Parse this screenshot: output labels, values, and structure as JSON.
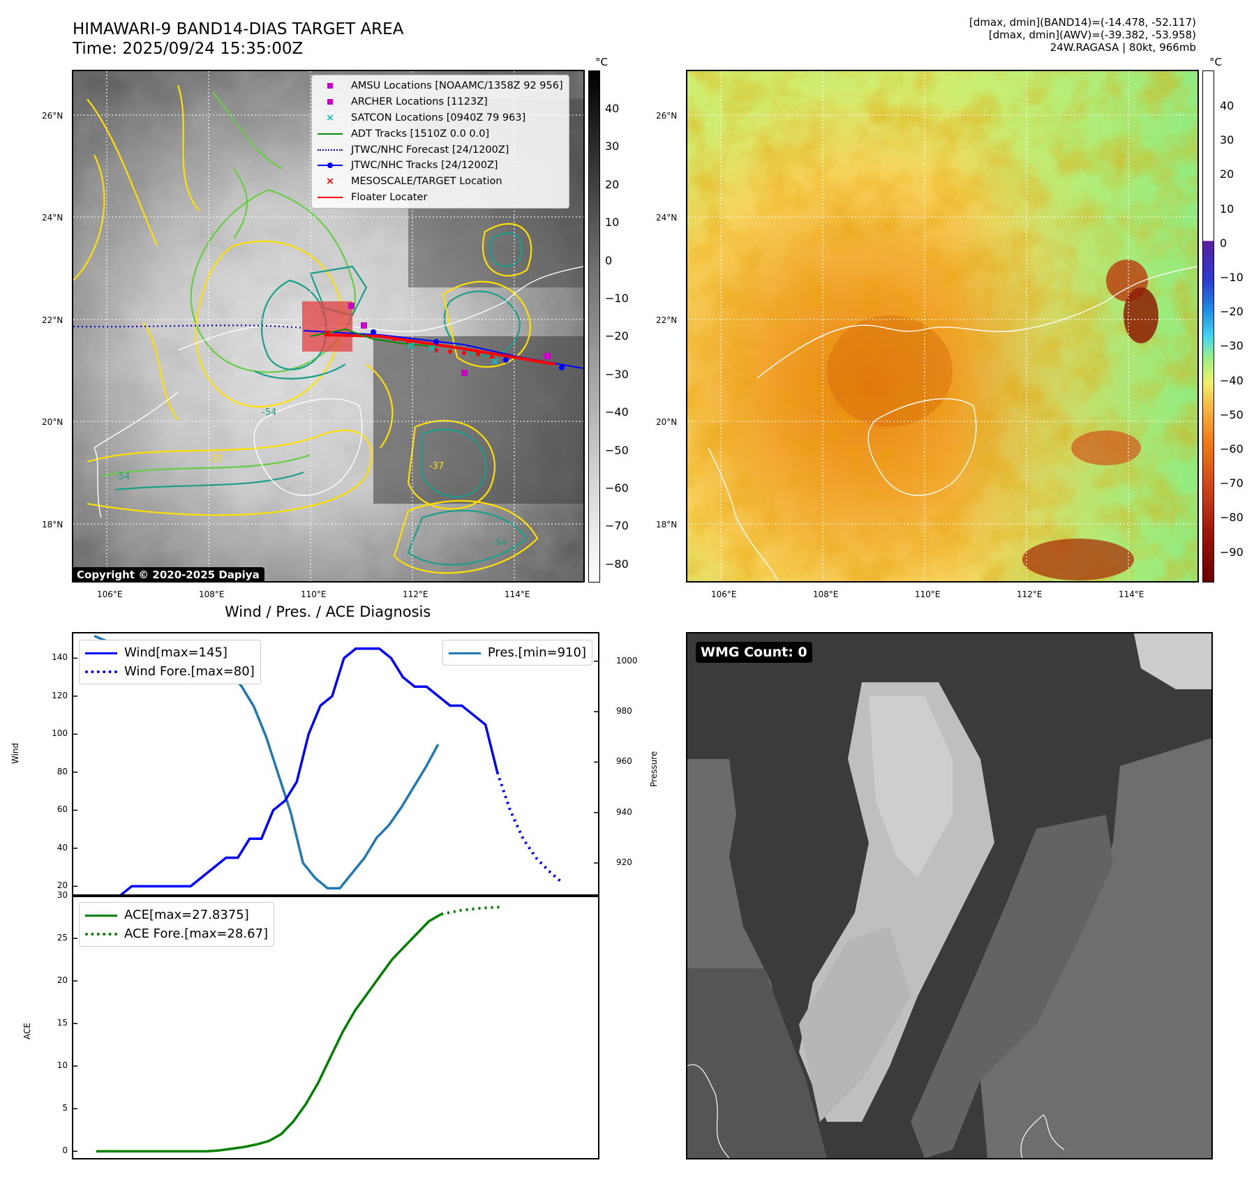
{
  "header": {
    "title_line1": "HIMAWARI-9 BAND14-DIAS TARGET AREA",
    "title_line2": "Time: 2025/09/24 15:35:00Z",
    "info_line1": "[dmax, dmin](BAND14)=(-14.478, -52.117)",
    "info_line2": "[dmax, dmin](AWV)=(-39.382, -53.958)",
    "info_line3": "24W.RAGASA | 80kt, 966mb"
  },
  "map": {
    "lat_labels": [
      "26°N",
      "24°N",
      "22°N",
      "20°N",
      "18°N"
    ],
    "lon_labels": [
      "106°E",
      "108°E",
      "110°E",
      "112°E",
      "114°E"
    ],
    "contour_labels": [
      "-54",
      "-37",
      "-54",
      "-37",
      "-54"
    ],
    "copyright": "Copyright © 2020-2025 Dapiya",
    "colors": {
      "contour_cold": "#1a9e8a",
      "contour_mid": "#66cc44",
      "contour_warm": "#ffe000",
      "coast": "#ffffff",
      "track": "#0000ff",
      "floater": "#ff0000"
    }
  },
  "legend": {
    "items": [
      {
        "label": "AMSU Locations [NOAAMC/1358Z 92 956]",
        "symbol": "magenta-square-icon"
      },
      {
        "label": "ARCHER Locations [1123Z]",
        "symbol": "magenta-square-icon"
      },
      {
        "label": "SATCON Locations [0940Z 79 963]",
        "symbol": "cyan-x-icon"
      },
      {
        "label": "ADT Tracks [1510Z 0.0 0.0]",
        "symbol": "green-line-icon"
      },
      {
        "label": "JTWC/NHC Forecast [24/1200Z]",
        "symbol": "blue-dotted-line-icon"
      },
      {
        "label": "JTWC/NHC Tracks [24/1200Z]",
        "symbol": "blue-line-dot-icon"
      },
      {
        "label": "MESOSCALE/TARGET Location",
        "symbol": "red-x-icon"
      },
      {
        "label": "Floater Locater",
        "symbol": "red-line-icon"
      }
    ]
  },
  "colorbar_gray": {
    "unit": "°C",
    "ticks": [
      "40",
      "30",
      "20",
      "10",
      "0",
      "−10",
      "−20",
      "−30",
      "−40",
      "−50",
      "−60",
      "−70",
      "−80"
    ]
  },
  "colorbar_color": {
    "unit": "°C",
    "ticks": [
      "40",
      "30",
      "20",
      "10",
      "0",
      "−10",
      "−20",
      "−30",
      "−40",
      "−50",
      "−60",
      "−70",
      "−80",
      "−90"
    ]
  },
  "wmg": {
    "badge": "WMG Count: 0"
  },
  "chart_data": [
    {
      "type": "line",
      "title": "Wind / Pres. / ACE Diagnosis",
      "ylabel": "Wind",
      "ylabel_right": "Pressure",
      "ylim": [
        15,
        153
      ],
      "ylim_right": [
        907,
        1011
      ],
      "yticks": [
        20,
        40,
        60,
        80,
        100,
        120,
        140
      ],
      "yticks_right": [
        920,
        940,
        960,
        980,
        1000
      ],
      "series": [
        {
          "name": "Wind[max=145]",
          "style": "solid",
          "color": "#0000ff",
          "values": [
            15,
            15,
            15,
            20,
            20,
            20,
            20,
            20,
            20,
            25,
            30,
            35,
            35,
            45,
            45,
            60,
            65,
            75,
            100,
            115,
            120,
            140,
            145,
            145,
            145,
            140,
            130,
            125,
            125,
            120,
            115,
            115,
            110,
            105,
            80
          ]
        },
        {
          "name": "Wind Fore.[max=80]",
          "style": "dotted",
          "color": "#0000ff",
          "values": [
            80,
            60,
            45,
            35,
            28,
            22
          ]
        },
        {
          "name": "Pres.[min=910]",
          "style": "solid",
          "color": "#1f77b4",
          "values": [
            1010,
            1008,
            1008,
            1008,
            1008,
            1007,
            1006,
            1005,
            1004,
            1002,
            1000,
            996,
            990,
            982,
            970,
            955,
            940,
            920,
            914,
            910,
            910,
            916,
            922,
            930,
            935,
            942,
            950,
            958,
            967
          ]
        }
      ]
    },
    {
      "type": "line",
      "ylabel": "ACE",
      "ylim": [
        -0.8,
        30
      ],
      "yticks": [
        0,
        5,
        10,
        15,
        20,
        25,
        30
      ],
      "series": [
        {
          "name": "ACE[max=27.8375]",
          "style": "solid",
          "color": "#008000",
          "values": [
            0,
            0,
            0,
            0,
            0,
            0,
            0,
            0,
            0,
            0,
            0.1,
            0.3,
            0.5,
            0.8,
            1.2,
            2.0,
            3.5,
            5.5,
            8.0,
            11.0,
            14.0,
            16.5,
            18.5,
            20.5,
            22.5,
            24.0,
            25.5,
            27.0,
            27.8375
          ]
        },
        {
          "name": "ACE Fore.[max=28.67]",
          "style": "dotted",
          "color": "#008000",
          "values": [
            27.8375,
            28.3,
            28.55,
            28.67
          ]
        }
      ]
    }
  ]
}
